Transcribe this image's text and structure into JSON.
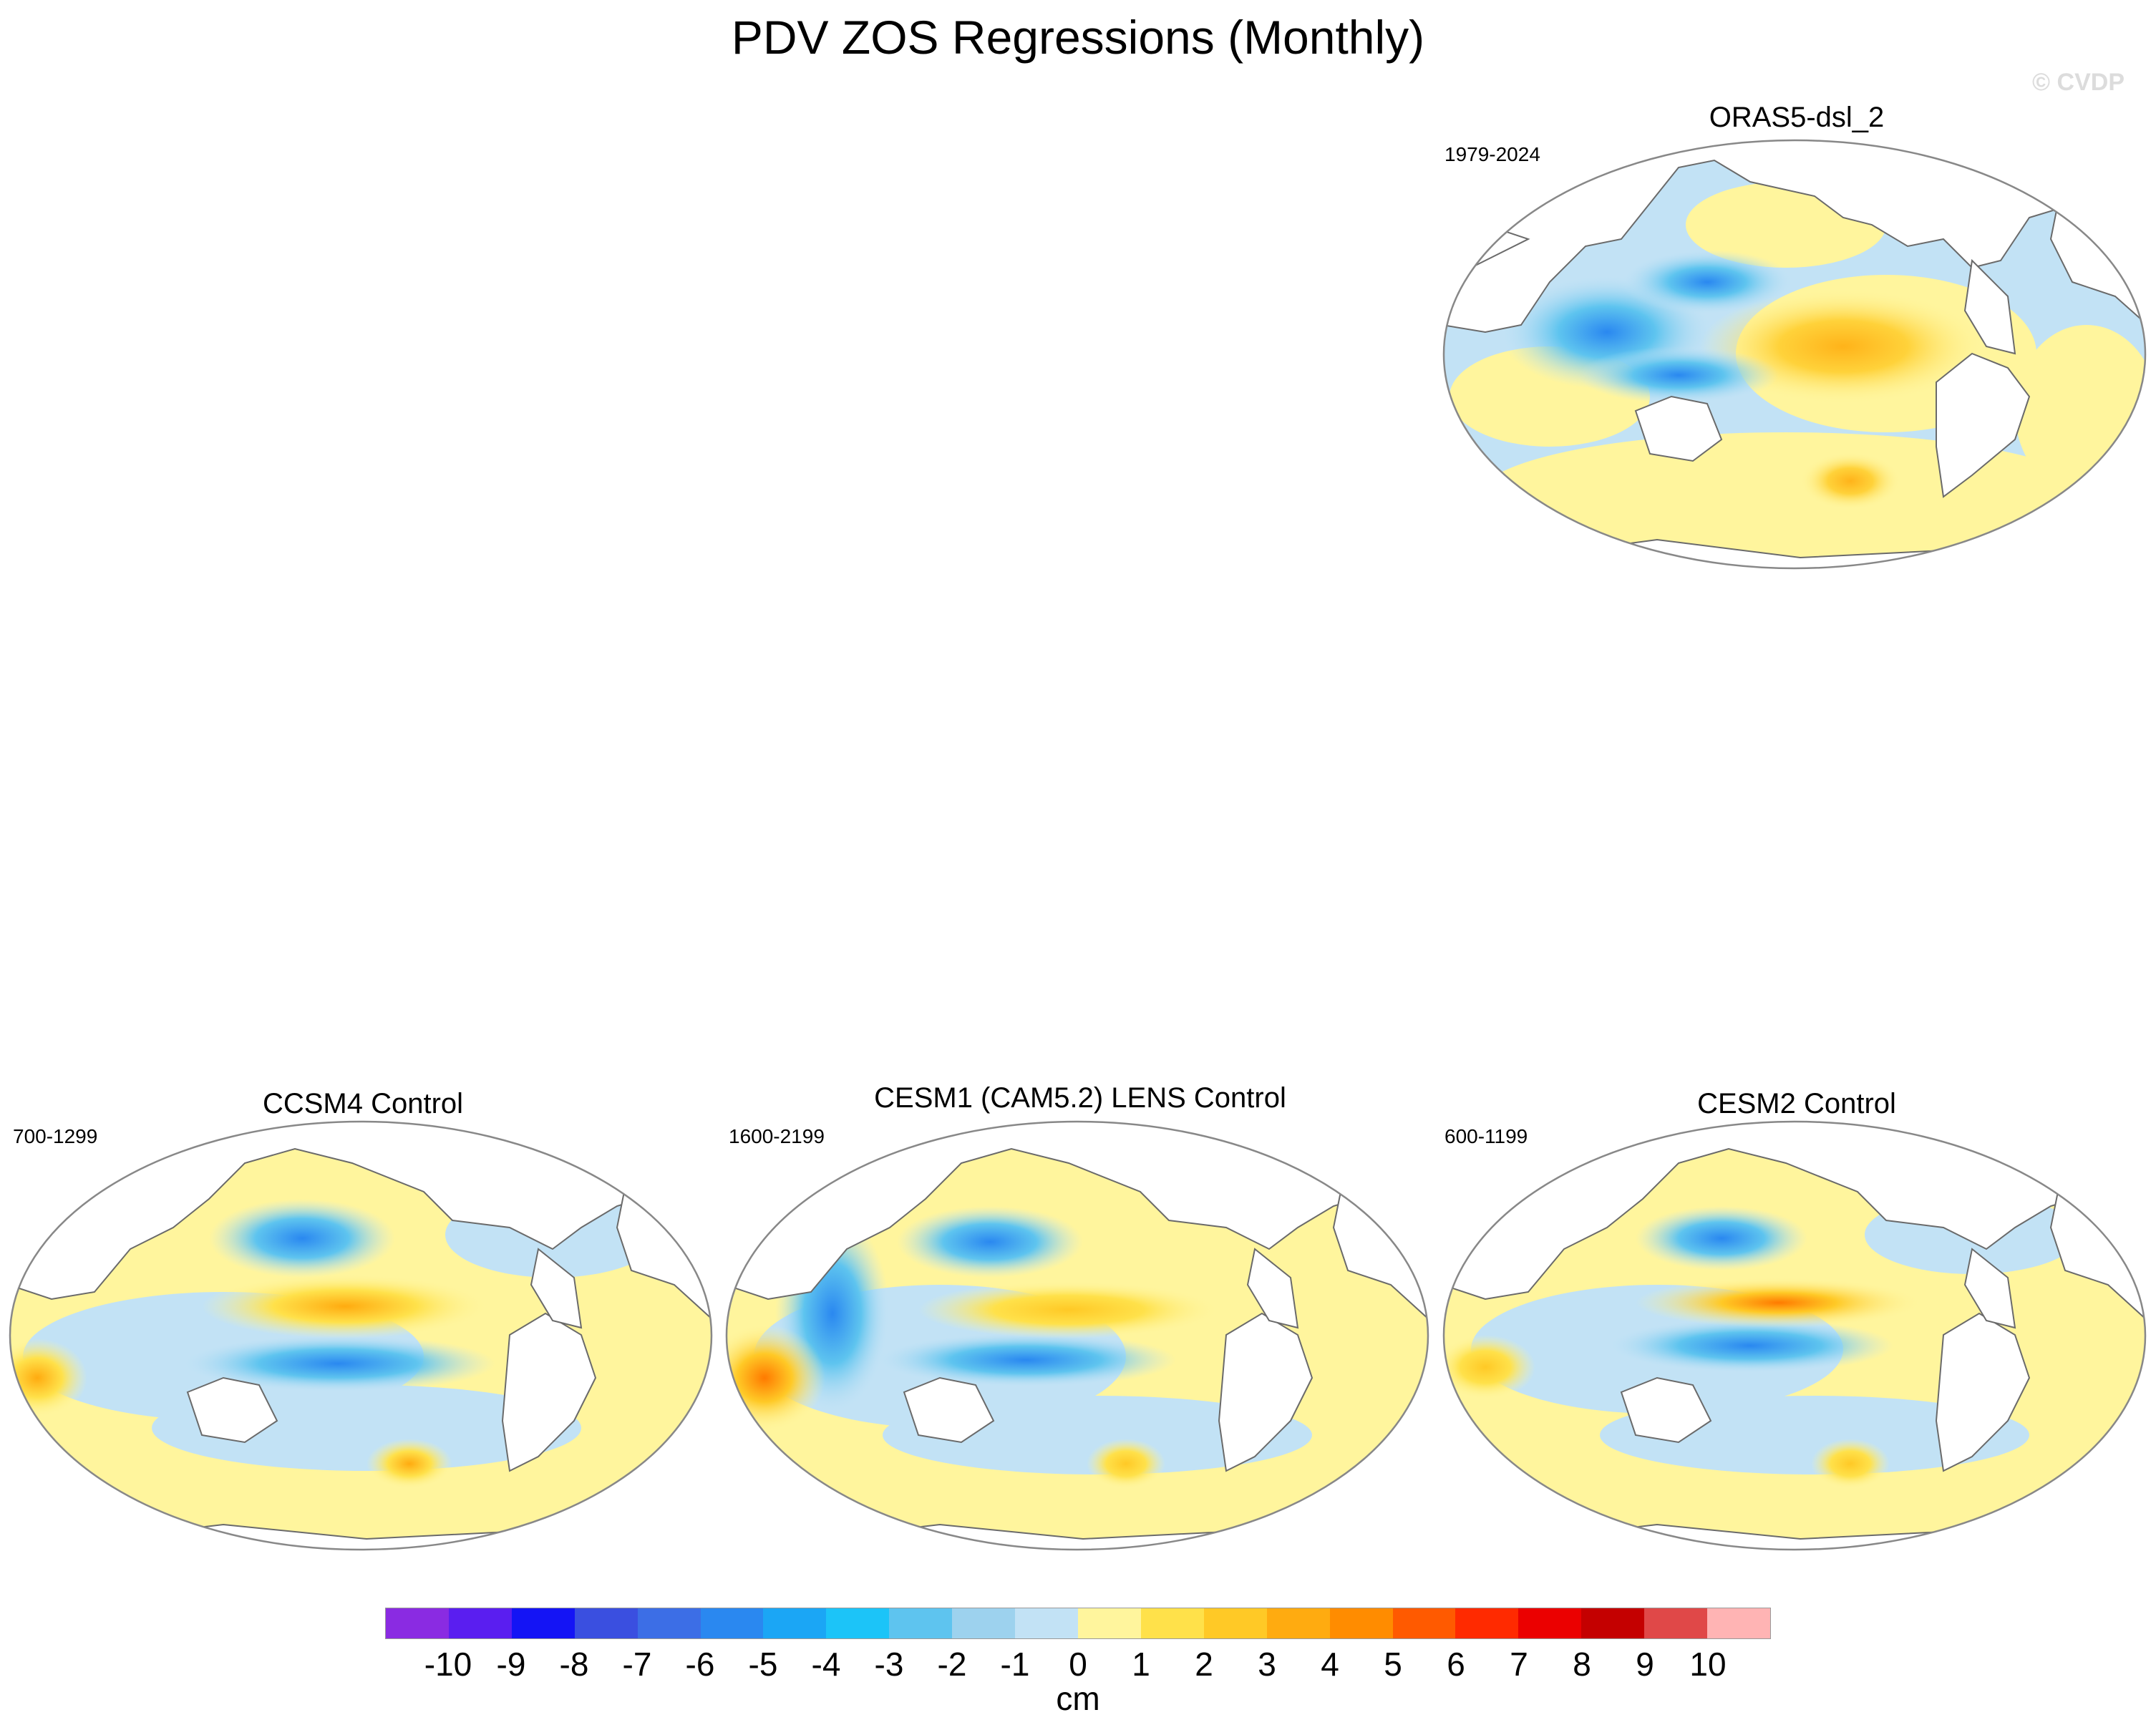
{
  "figure": {
    "title": "PDV ZOS Regressions (Monthly)",
    "watermark": "© CVDP"
  },
  "panels": [
    {
      "id": "orass5",
      "title": "ORAS5-dsl_2",
      "period": "1979-2024"
    },
    {
      "id": "ccsm4",
      "title": "CCSM4 Control",
      "period": "700-1299"
    },
    {
      "id": "cesm1",
      "title": "CESM1 (CAM5.2) LENS Control",
      "period": "1600-2199"
    },
    {
      "id": "cesm2",
      "title": "CESM2 Control",
      "period": "600-1199"
    }
  ],
  "colorbar": {
    "units": "cm",
    "levels": [
      "-10",
      "-9",
      "-8",
      "-7",
      "-6",
      "-5",
      "-4",
      "-3",
      "-2",
      "-1",
      "0",
      "1",
      "2",
      "3",
      "4",
      "5",
      "6",
      "7",
      "8",
      "9",
      "10"
    ],
    "colors": [
      "#8a2be2",
      "#5a1ef0",
      "#1414f5",
      "#3a4fe0",
      "#3c6ee6",
      "#2a88f0",
      "#1ba6f5",
      "#1cc4f8",
      "#5ec4ef",
      "#9dd2ee",
      "#c2e2f5",
      "#fff59d",
      "#ffe14a",
      "#ffc926",
      "#ffab10",
      "#ff8c00",
      "#ff5a00",
      "#ff2a00",
      "#eb0000",
      "#c40000",
      "#e04848",
      "#ffb4b4"
    ]
  }
}
